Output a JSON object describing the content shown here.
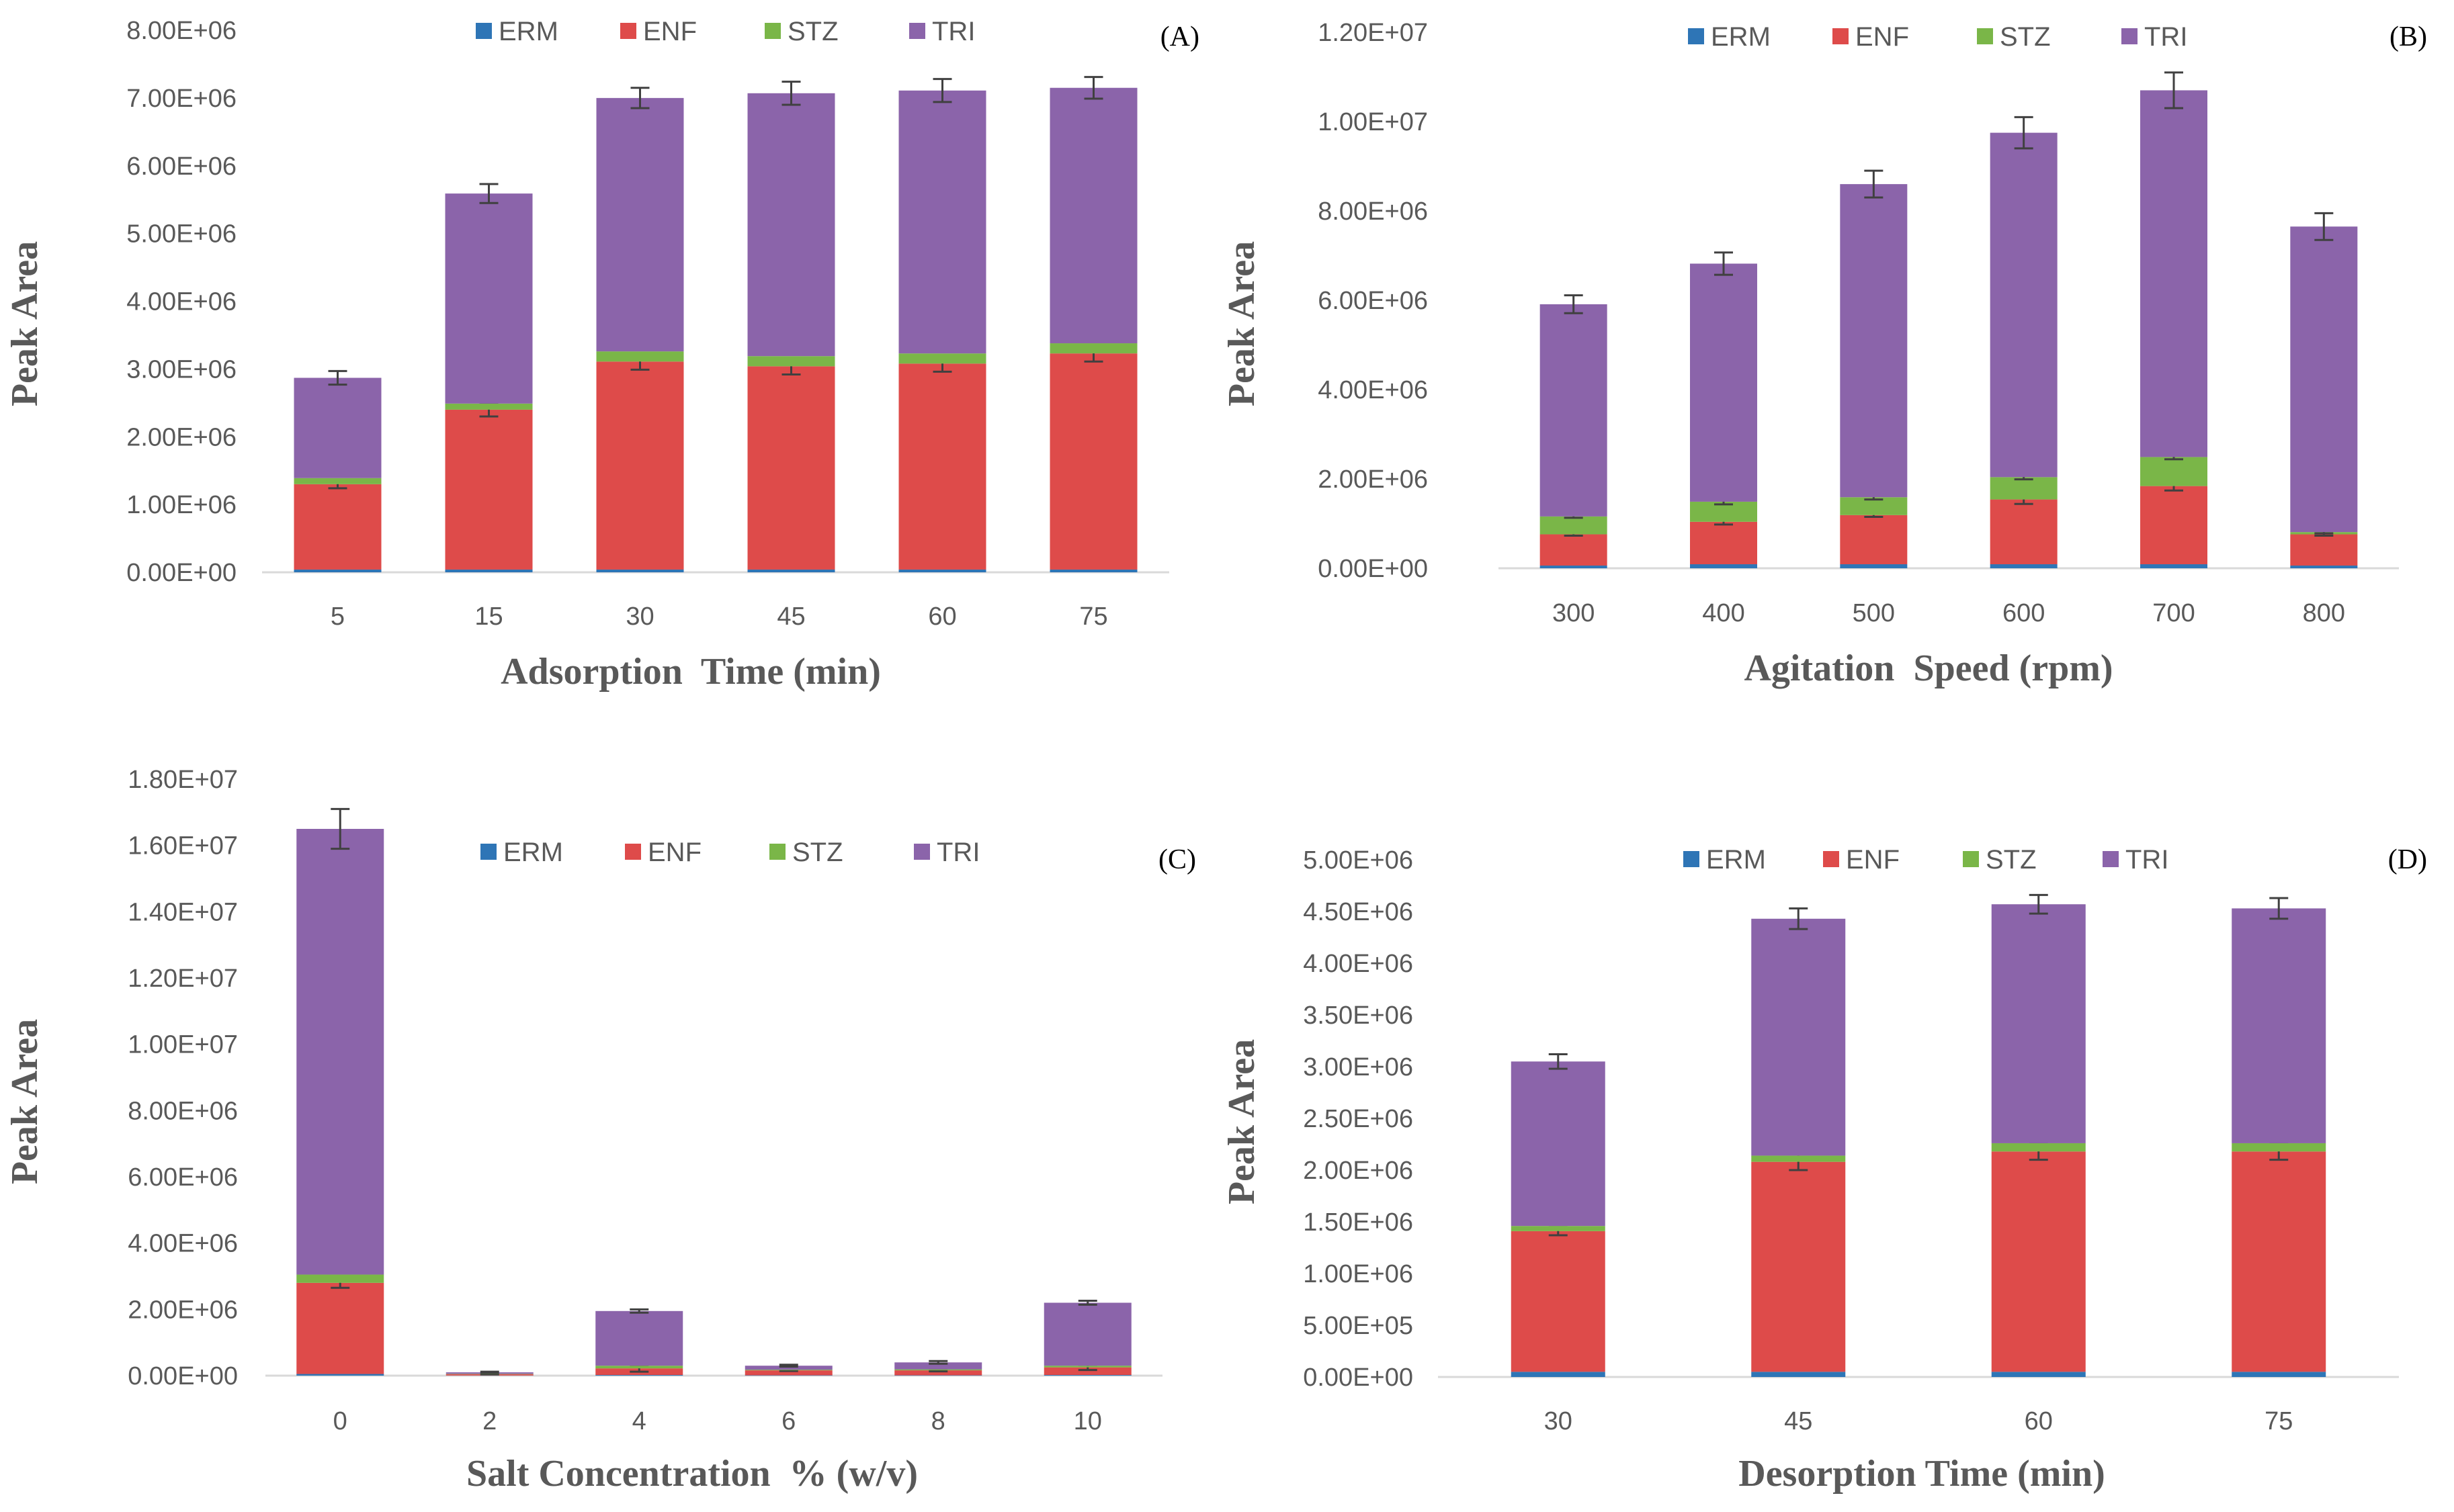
{
  "chart_data": [
    {
      "type": "bar",
      "stacked": true,
      "panel_label": "(A)",
      "xlabel": "Adsorption  Time (min)",
      "ylabel": "Peak Area",
      "categories": [
        "5",
        "15",
        "30",
        "45",
        "60",
        "75"
      ],
      "ylim": [
        0,
        8000000
      ],
      "yticks": [
        "0.00E+00",
        "1.00E+06",
        "2.00E+06",
        "3.00E+06",
        "4.00E+06",
        "5.00E+06",
        "6.00E+06",
        "7.00E+06",
        "8.00E+06"
      ],
      "legend": [
        "ERM",
        "ENF",
        "STZ",
        "TRI"
      ],
      "legend_position": "top",
      "series": [
        {
          "name": "ERM",
          "color": "#2e75b6",
          "values": [
            40000,
            40000,
            40000,
            40000,
            40000,
            40000
          ]
        },
        {
          "name": "ENF",
          "color": "#de4b4a",
          "values": [
            1260000,
            2360000,
            3070000,
            3000000,
            3040000,
            3190000
          ]
        },
        {
          "name": "STZ",
          "color": "#7ab648",
          "values": [
            90000,
            90000,
            150000,
            150000,
            150000,
            150000
          ]
        },
        {
          "name": "TRI",
          "color": "#8b64aa",
          "values": [
            1480000,
            3100000,
            3740000,
            3880000,
            3880000,
            3770000
          ]
        }
      ],
      "error_bars": {
        "ENF": [
          60000,
          100000,
          120000,
          120000,
          120000,
          120000
        ],
        "TRI": [
          100000,
          140000,
          150000,
          170000,
          170000,
          160000
        ]
      }
    },
    {
      "type": "bar",
      "stacked": true,
      "panel_label": "(B)",
      "xlabel": "Agitation  Speed (rpm)",
      "ylabel": "Peak Area",
      "categories": [
        "300",
        "400",
        "500",
        "600",
        "700",
        "800"
      ],
      "ylim": [
        0,
        12000000
      ],
      "yticks": [
        "0.00E+00",
        "2.00E+06",
        "4.00E+06",
        "6.00E+06",
        "8.00E+06",
        "1.00E+07",
        "1.20E+07"
      ],
      "legend": [
        "ERM",
        "ENF",
        "STZ",
        "TRI"
      ],
      "legend_position": "top",
      "series": [
        {
          "name": "ERM",
          "color": "#2e75b6",
          "values": [
            60000,
            90000,
            90000,
            90000,
            90000,
            60000
          ]
        },
        {
          "name": "ENF",
          "color": "#de4b4a",
          "values": [
            700000,
            950000,
            1100000,
            1450000,
            1750000,
            700000
          ]
        },
        {
          "name": "STZ",
          "color": "#7ab648",
          "values": [
            400000,
            450000,
            400000,
            500000,
            650000,
            50000
          ]
        },
        {
          "name": "TRI",
          "color": "#8b64aa",
          "values": [
            4750000,
            5330000,
            7010000,
            7710000,
            8210000,
            6840000
          ]
        }
      ],
      "error_bars": {
        "ENF": [
          30000,
          60000,
          40000,
          100000,
          100000,
          30000
        ],
        "STZ": [
          30000,
          60000,
          50000,
          50000,
          50000,
          30000
        ],
        "TRI": [
          200000,
          250000,
          300000,
          350000,
          400000,
          300000
        ]
      }
    },
    {
      "type": "bar",
      "stacked": true,
      "panel_label": "(C)",
      "xlabel": "Salt Concentration  % (w/v)",
      "ylabel": "Peak Area",
      "categories": [
        "0",
        "2",
        "4",
        "6",
        "8",
        "10"
      ],
      "ylim": [
        0,
        18000000
      ],
      "yticks": [
        "0.00E+00",
        "2.00E+06",
        "4.00E+06",
        "6.00E+06",
        "8.00E+06",
        "1.00E+07",
        "1.20E+07",
        "1.40E+07",
        "1.60E+07",
        "1.80E+07"
      ],
      "legend": [
        "ERM",
        "ENF",
        "STZ",
        "TRI"
      ],
      "legend_position": "top",
      "series": [
        {
          "name": "ERM",
          "color": "#2e75b6",
          "values": [
            50000,
            5000,
            20000,
            10000,
            10000,
            20000
          ]
        },
        {
          "name": "ENF",
          "color": "#de4b4a",
          "values": [
            2750000,
            40000,
            200000,
            150000,
            150000,
            230000
          ]
        },
        {
          "name": "STZ",
          "color": "#7ab648",
          "values": [
            250000,
            10000,
            80000,
            20000,
            30000,
            50000
          ]
        },
        {
          "name": "TRI",
          "color": "#8b64aa",
          "values": [
            13450000,
            45000,
            1650000,
            120000,
            210000,
            1900000
          ]
        }
      ],
      "error_bars": {
        "ENF": [
          150000,
          10000,
          100000,
          20000,
          30000,
          80000
        ],
        "TRI": [
          600000,
          20000,
          50000,
          30000,
          40000,
          60000
        ]
      }
    },
    {
      "type": "bar",
      "stacked": true,
      "panel_label": "(D)",
      "xlabel": "Desorption Time (min)",
      "ylabel": "Peak Area",
      "categories": [
        "30",
        "45",
        "60",
        "75"
      ],
      "ylim": [
        0,
        5000000
      ],
      "yticks": [
        "0.00E+00",
        "5.00E+05",
        "1.00E+06",
        "1.50E+06",
        "2.00E+06",
        "2.50E+06",
        "3.00E+06",
        "3.50E+06",
        "4.00E+06",
        "4.50E+06",
        "5.00E+06"
      ],
      "legend": [
        "ERM",
        "ENF",
        "STZ",
        "TRI"
      ],
      "legend_position": "top",
      "series": [
        {
          "name": "ERM",
          "color": "#2e75b6",
          "values": [
            50000,
            50000,
            50000,
            50000
          ]
        },
        {
          "name": "ENF",
          "color": "#de4b4a",
          "values": [
            1360000,
            2030000,
            2130000,
            2130000
          ]
        },
        {
          "name": "STZ",
          "color": "#7ab648",
          "values": [
            50000,
            60000,
            80000,
            80000
          ]
        },
        {
          "name": "TRI",
          "color": "#8b64aa",
          "values": [
            1590000,
            2290000,
            2310000,
            2270000
          ]
        }
      ],
      "error_bars": {
        "ENF": [
          40000,
          80000,
          80000,
          80000
        ],
        "TRI": [
          70000,
          100000,
          90000,
          100000
        ]
      }
    }
  ]
}
